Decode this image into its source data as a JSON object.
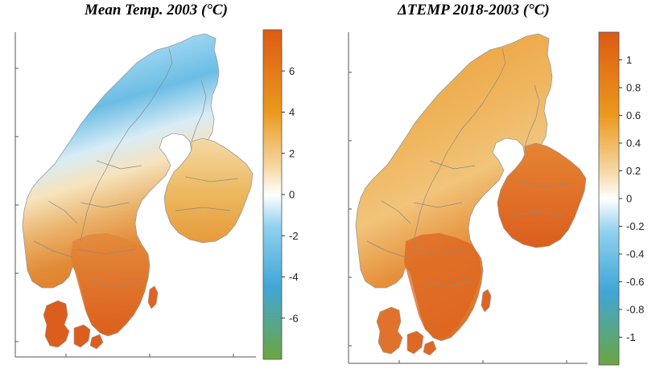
{
  "panels": [
    {
      "title": "Mean Temp. 2003 (°C)",
      "colorbar": {
        "min": -8,
        "max": 8,
        "ticks": [
          6,
          4,
          2,
          0,
          -2,
          -4,
          -6
        ],
        "tick_labels": [
          "6",
          "4",
          "2",
          "0",
          "-2",
          "-4",
          "-6"
        ],
        "colors": [
          "#dd5a15",
          "#ea9a1c",
          "#f6d9a6",
          "#ffffff",
          "#8fd0ee",
          "#40a6d6",
          "#6ca540"
        ]
      }
    },
    {
      "title": "ΔTEMP 2018-2003 (°C)",
      "colorbar": {
        "min": -1.2,
        "max": 1.2,
        "ticks": [
          1,
          0.8,
          0.6,
          0.4,
          0.2,
          0,
          -0.2,
          -0.4,
          -0.6,
          -0.8,
          -1
        ],
        "tick_labels": [
          "1",
          "0.8",
          "0.6",
          "0.4",
          "0.2",
          "0",
          "-0.2",
          "-0.4",
          "-0.6",
          "-0.8",
          "-1"
        ],
        "colors": [
          "#dd5a15",
          "#ea9a1c",
          "#f6d9a6",
          "#ffffff",
          "#8fd0ee",
          "#40a6d6",
          "#6ca540"
        ]
      }
    }
  ],
  "colors": {
    "warm": "#e07a2a",
    "orange": "#e9a02e",
    "light": "#f3ddb0",
    "white": "#ffffff",
    "cold": "#4aa8dc",
    "border": "#8a8a8a"
  }
}
